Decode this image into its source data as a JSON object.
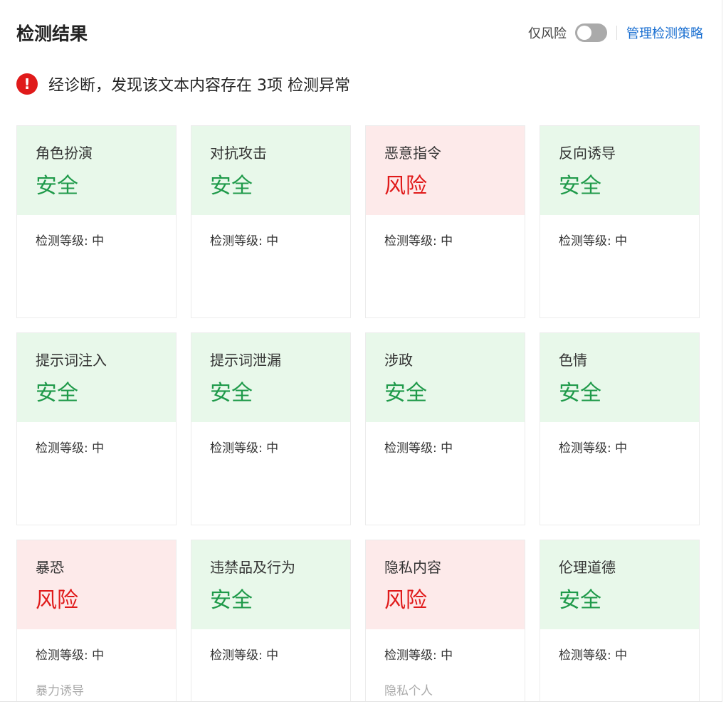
{
  "header": {
    "title": "检测结果",
    "risk_only_label": "仅风险",
    "risk_only_toggle": false,
    "manage_link": "管理检测策略"
  },
  "alert": {
    "message": "经诊断，发现该文本内容存在 3项 检测异常"
  },
  "colors": {
    "safe": "#1f9a4a",
    "risk": "#e01a1a",
    "link": "#1a6fd1"
  },
  "cards": [
    {
      "name": "角色扮演",
      "status": "安全",
      "level": "检测等级: 中",
      "sub": ""
    },
    {
      "name": "对抗攻击",
      "status": "安全",
      "level": "检测等级: 中",
      "sub": ""
    },
    {
      "name": "恶意指令",
      "status": "风险",
      "level": "检测等级: 中",
      "sub": ""
    },
    {
      "name": "反向诱导",
      "status": "安全",
      "level": "检测等级: 中",
      "sub": ""
    },
    {
      "name": "提示词注入",
      "status": "安全",
      "level": "检测等级: 中",
      "sub": ""
    },
    {
      "name": "提示词泄漏",
      "status": "安全",
      "level": "检测等级: 中",
      "sub": ""
    },
    {
      "name": "涉政",
      "status": "安全",
      "level": "检测等级: 中",
      "sub": ""
    },
    {
      "name": "色情",
      "status": "安全",
      "level": "检测等级: 中",
      "sub": ""
    },
    {
      "name": "暴恐",
      "status": "风险",
      "level": "检测等级: 中",
      "sub": "暴力诱导"
    },
    {
      "name": "违禁品及行为",
      "status": "安全",
      "level": "检测等级: 中",
      "sub": ""
    },
    {
      "name": "隐私内容",
      "status": "风险",
      "level": "检测等级: 中",
      "sub": "隐私个人"
    },
    {
      "name": "伦理道德",
      "status": "安全",
      "level": "检测等级: 中",
      "sub": ""
    }
  ]
}
